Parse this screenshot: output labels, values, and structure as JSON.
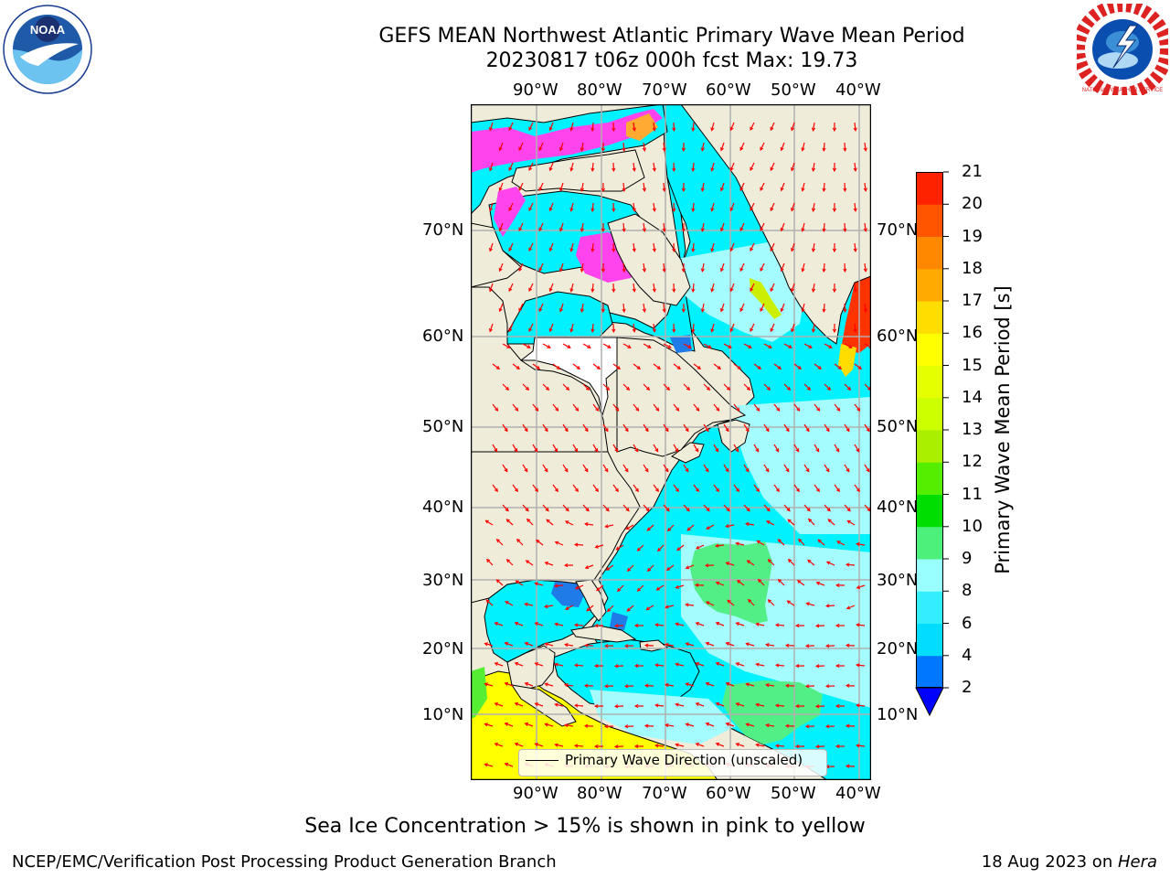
{
  "header": {
    "title_line1": "GEFS MEAN Northwest Atlantic Primary Wave Mean Period",
    "title_line2": "20230817 t06z 000h fcst   Max: 19.73"
  },
  "logos": {
    "left": {
      "name": "noaa-logo",
      "text": "NOAA"
    },
    "right": {
      "name": "national-weather-service-logo",
      "text": "NATIONAL WEATHER SERVICE"
    }
  },
  "map": {
    "lon_labels": [
      "90°W",
      "80°W",
      "70°W",
      "60°W",
      "50°W",
      "40°W"
    ],
    "lat_labels": [
      "70°N",
      "60°N",
      "50°N",
      "40°N",
      "30°N",
      "20°N",
      "10°N"
    ],
    "legend_label": "Primary Wave Direction (unscaled)",
    "colors": {
      "land": "#efedda",
      "ocean_low": "#00ffff",
      "ocean_mid": "#99ffff",
      "green": "#4cf07a",
      "ice_pink": "#ff44ee",
      "arrow": "#ff0000"
    }
  },
  "colorbar": {
    "label": "Primary Wave Mean Period [s]",
    "tick_labels": [
      "2",
      "4",
      "6",
      "8",
      "9",
      "10",
      "11",
      "12",
      "13",
      "14",
      "15",
      "16",
      "17",
      "18",
      "19",
      "20",
      "21"
    ],
    "colors": [
      "#0077ff",
      "#00ddff",
      "#33eeff",
      "#99ffff",
      "#4cf07a",
      "#00dd00",
      "#55ee00",
      "#aaee00",
      "#ccff00",
      "#e6ff00",
      "#ffff00",
      "#ffdd00",
      "#ffaa00",
      "#ff8800",
      "#ff5500",
      "#ff2200"
    ],
    "extend_color": "#0000ff"
  },
  "notes": {
    "sea_ice": "Sea Ice Concentration > 15% is shown in pink to yellow"
  },
  "footer": {
    "left": "NCEP/EMC/Verification Post Processing Product Generation Branch",
    "right_date": "18 Aug 2023 on ",
    "right_machine": "Hera"
  }
}
